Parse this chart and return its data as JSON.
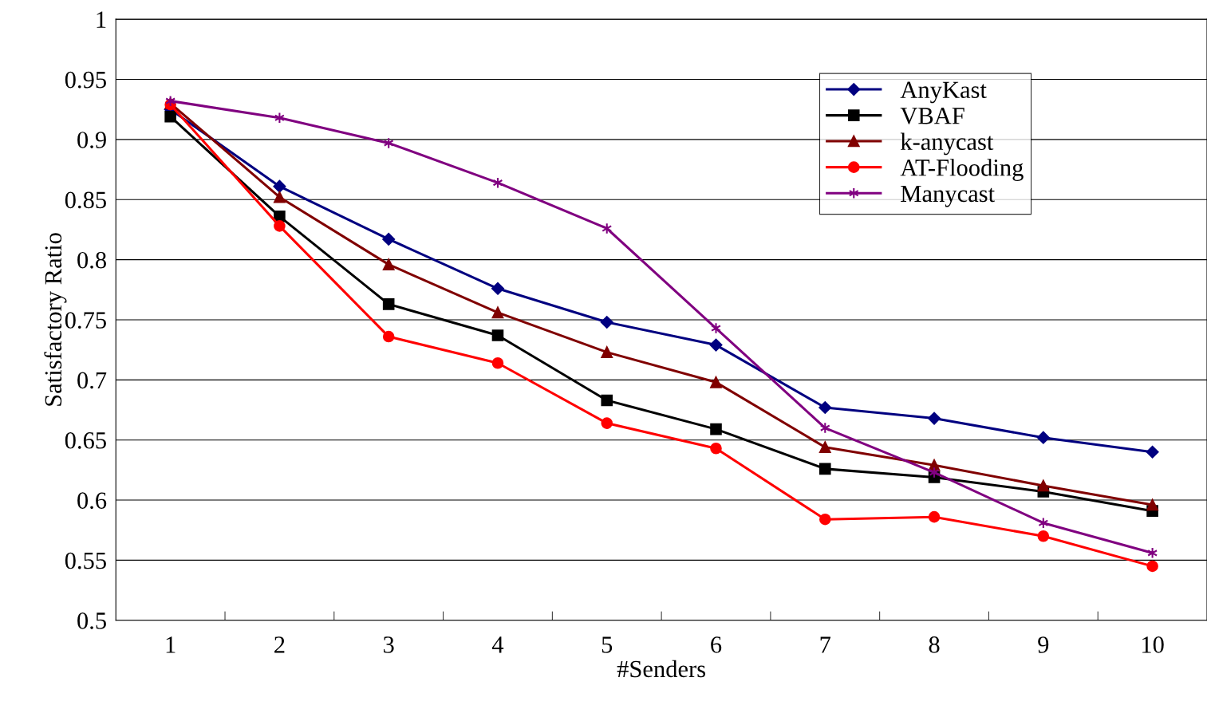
{
  "chart_data": {
    "type": "line",
    "xlabel": "#Senders",
    "ylabel": "Satisfactory Ratio",
    "categories": [
      "1",
      "2",
      "3",
      "4",
      "5",
      "6",
      "7",
      "8",
      "9",
      "10"
    ],
    "ylim": [
      0.5,
      1
    ],
    "yticks": [
      0.5,
      0.55,
      0.6,
      0.65,
      0.7,
      0.75,
      0.8,
      0.85,
      0.9,
      0.95,
      1
    ],
    "grid": "y",
    "legend": "top right",
    "line_style": "solid",
    "series": [
      {
        "name": "AnyKast",
        "color": "#000080",
        "marker": "diamond",
        "values": [
          0.925,
          0.861,
          0.817,
          0.776,
          0.748,
          0.729,
          0.677,
          0.668,
          0.652,
          0.64
        ]
      },
      {
        "name": "VBAF",
        "color": "#000000",
        "marker": "square",
        "values": [
          0.919,
          0.836,
          0.763,
          0.737,
          0.683,
          0.659,
          0.626,
          0.619,
          0.607,
          0.591
        ]
      },
      {
        "name": "k-anycast",
        "color": "#800000",
        "marker": "triangle",
        "values": [
          0.93,
          0.852,
          0.796,
          0.756,
          0.723,
          0.698,
          0.644,
          0.629,
          0.612,
          0.596
        ]
      },
      {
        "name": "AT-Flooding",
        "color": "#ff0000",
        "marker": "circle",
        "values": [
          0.929,
          0.828,
          0.736,
          0.714,
          0.664,
          0.643,
          0.584,
          0.586,
          0.57,
          0.545
        ]
      },
      {
        "name": "Manycast",
        "color": "#800080",
        "marker": "cross",
        "values": [
          0.932,
          0.918,
          0.897,
          0.864,
          0.826,
          0.743,
          0.66,
          0.623,
          0.581,
          0.556
        ]
      }
    ]
  }
}
